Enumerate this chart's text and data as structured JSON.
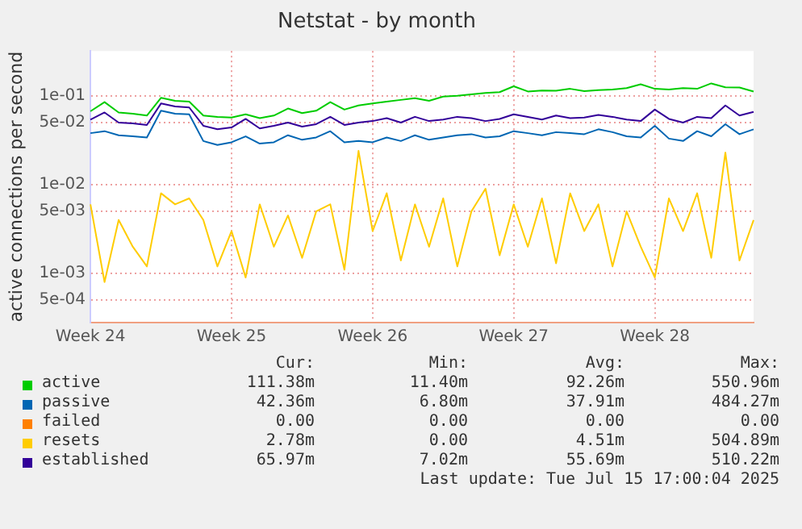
{
  "chart_data": {
    "type": "line",
    "title": "Netstat - by month",
    "ylabel": "active connections per second",
    "categories": [
      "Week 24",
      null,
      null,
      null,
      null,
      null,
      null,
      null,
      null,
      null,
      "Week 25",
      null,
      null,
      null,
      null,
      null,
      null,
      null,
      null,
      null,
      "Week 26",
      null,
      null,
      null,
      null,
      null,
      null,
      null,
      null,
      null,
      "Week 27",
      null,
      null,
      null,
      null,
      null,
      null,
      null,
      null,
      null,
      "Week 28",
      null,
      null,
      null,
      null,
      null,
      null,
      null
    ],
    "series": [
      {
        "name": "active",
        "color": "#00cc00",
        "values": [
          0.067,
          0.085,
          0.065,
          0.063,
          0.06,
          0.095,
          0.088,
          0.086,
          0.06,
          0.058,
          0.057,
          0.062,
          0.056,
          0.06,
          0.072,
          0.064,
          0.068,
          0.085,
          0.07,
          0.078,
          0.082,
          0.086,
          0.09,
          0.094,
          0.088,
          0.098,
          0.1,
          0.104,
          0.108,
          0.11,
          0.128,
          0.112,
          0.115,
          0.114,
          0.12,
          0.113,
          0.116,
          0.118,
          0.122,
          0.135,
          0.12,
          0.118,
          0.122,
          0.12,
          0.138,
          0.125,
          0.124,
          0.112
        ]
      },
      {
        "name": "passive",
        "color": "#0066b3",
        "values": [
          0.038,
          0.04,
          0.036,
          0.035,
          0.034,
          0.068,
          0.063,
          0.062,
          0.031,
          0.028,
          0.03,
          0.035,
          0.029,
          0.03,
          0.036,
          0.032,
          0.034,
          0.04,
          0.03,
          0.031,
          0.03,
          0.034,
          0.031,
          0.036,
          0.032,
          0.034,
          0.036,
          0.037,
          0.034,
          0.035,
          0.04,
          0.038,
          0.036,
          0.039,
          0.038,
          0.037,
          0.042,
          0.039,
          0.035,
          0.034,
          0.046,
          0.033,
          0.031,
          0.04,
          0.035,
          0.048,
          0.037,
          0.042
        ]
      },
      {
        "name": "failed",
        "color": "#ff8000",
        "values": [
          null,
          null,
          null,
          null,
          null,
          null,
          null,
          null,
          null,
          null,
          null,
          null,
          null,
          null,
          null,
          null,
          null,
          null,
          null,
          null,
          null,
          null,
          null,
          null,
          null,
          null,
          null,
          null,
          null,
          null,
          null,
          null,
          null,
          null,
          null,
          null,
          null,
          null,
          null,
          null,
          null,
          null,
          null,
          null,
          null,
          null,
          null,
          null
        ]
      },
      {
        "name": "resets",
        "color": "#ffcc00",
        "values": [
          0.006,
          0.0008,
          0.004,
          0.002,
          0.0012,
          0.008,
          0.006,
          0.007,
          0.004,
          0.0012,
          0.003,
          0.0009,
          0.006,
          0.002,
          0.0045,
          0.0015,
          0.005,
          0.006,
          0.0011,
          0.024,
          0.003,
          0.008,
          0.0014,
          0.006,
          0.002,
          0.007,
          0.0012,
          0.005,
          0.009,
          0.0016,
          0.006,
          0.002,
          0.007,
          0.0013,
          0.008,
          0.003,
          0.006,
          0.0012,
          0.005,
          0.002,
          0.0009,
          0.007,
          0.003,
          0.008,
          0.0015,
          0.023,
          0.0014,
          0.004
        ]
      },
      {
        "name": "established",
        "color": "#330099",
        "values": [
          0.054,
          0.065,
          0.05,
          0.049,
          0.047,
          0.082,
          0.076,
          0.074,
          0.046,
          0.042,
          0.044,
          0.055,
          0.043,
          0.046,
          0.05,
          0.045,
          0.048,
          0.058,
          0.047,
          0.05,
          0.052,
          0.056,
          0.05,
          0.058,
          0.052,
          0.054,
          0.058,
          0.056,
          0.052,
          0.055,
          0.062,
          0.058,
          0.054,
          0.06,
          0.056,
          0.057,
          0.061,
          0.058,
          0.054,
          0.052,
          0.07,
          0.055,
          0.05,
          0.058,
          0.056,
          0.078,
          0.06,
          0.066
        ]
      }
    ],
    "ylim": [
      0.00028,
      0.32
    ],
    "yticks": [
      {
        "value": 0.0005,
        "label": "5e-04"
      },
      {
        "value": 0.001,
        "label": "1e-03"
      },
      {
        "value": 0.005,
        "label": "5e-03"
      },
      {
        "value": 0.01,
        "label": "1e-02"
      },
      {
        "value": 0.05,
        "label": "5e-02"
      },
      {
        "value": 0.1,
        "label": "1e-01"
      }
    ],
    "log": "y",
    "grid": true,
    "legend": "bottom",
    "marker": "none",
    "line_style": "solid",
    "annotations": [
      "Cur:",
      "Min:",
      "Avg:",
      "Max:",
      "111.38m",
      "11.40m",
      "92.26m",
      "550.96m",
      "42.36m",
      "6.80m",
      "37.91m",
      "484.27m",
      "0.00",
      "0.00",
      "0.00",
      "0.00",
      "2.78m",
      "0.00",
      "4.51m",
      "504.89m",
      "65.97m",
      "7.02m",
      "55.69m",
      "510.22m",
      "Last update: Tue Jul 15 17:00:04 2025"
    ]
  }
}
